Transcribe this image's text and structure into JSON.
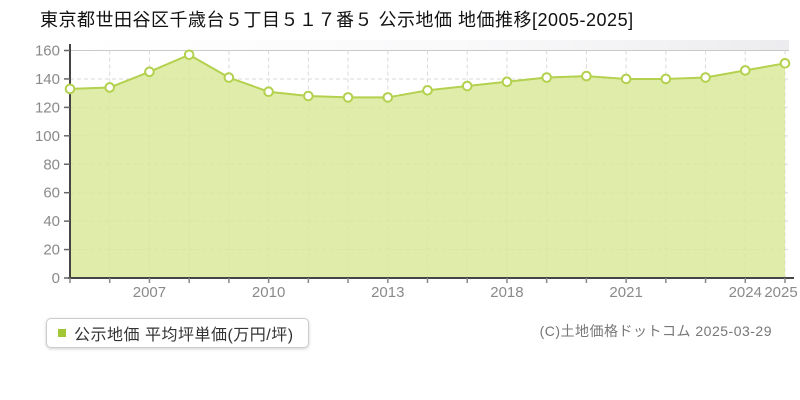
{
  "page": {
    "title": "東京都世田谷区千歳台５丁目５１７番５ 公示地価 地価推移[2005-2025]",
    "copyright": "(C)土地価格ドットコム 2025-03-29"
  },
  "legend": {
    "label": "公示地価 平均坪単価(万円/坪)",
    "marker_color": "#a3c636"
  },
  "chart_data": {
    "type": "area",
    "title": "東京都世田谷区千歳台５丁目５１７番５ 公示地価 地価推移[2005-2025]",
    "series": [
      {
        "name": "公示地価 平均坪単価(万円/坪)",
        "values": [
          133,
          134,
          145,
          157,
          141,
          131,
          128,
          127,
          127,
          132,
          135,
          138,
          141,
          142,
          140,
          140,
          141,
          146,
          151
        ]
      }
    ],
    "x_axis": {
      "tick_labels": [
        "2007",
        "2010",
        "2013",
        "2018",
        "2021",
        "2024",
        "2025"
      ],
      "tick_point_indices": [
        2,
        5,
        8,
        11,
        14,
        17,
        18
      ],
      "num_points": 19,
      "range_label": "2005-2025"
    },
    "y_axis": {
      "ticks": [
        0,
        20,
        40,
        60,
        80,
        100,
        120,
        140,
        160
      ],
      "lim": [
        0,
        160
      ],
      "unit": "万円/坪"
    },
    "grid": true,
    "legend_position": "bottom-left",
    "colors": {
      "line": "#b3d14e",
      "fill": "#d9e896",
      "marker_fill": "#ffffff",
      "grid": "#dadada",
      "grid_solid_top": "#c9c9c9",
      "axis": "#444444",
      "tick_label": "#8a8a8a"
    }
  }
}
